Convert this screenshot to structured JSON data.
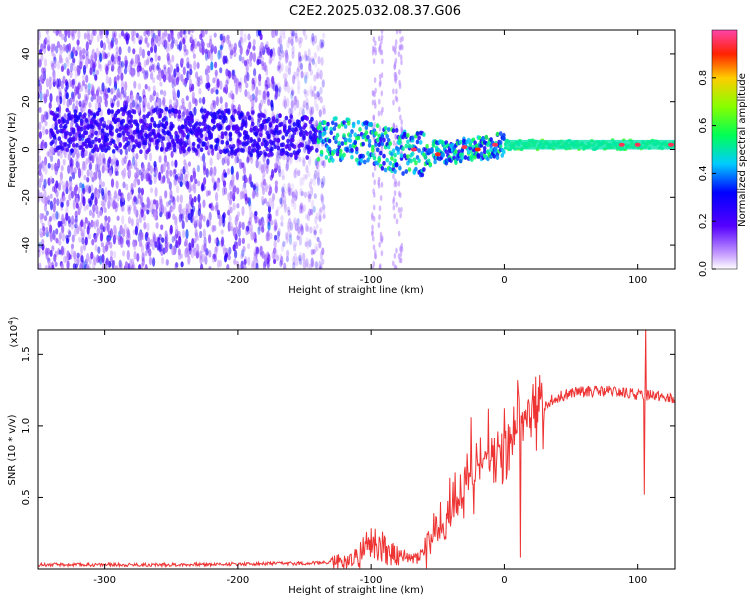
{
  "title": "C2E2.2025.032.08.37.G06",
  "colors": {
    "signal": "#ee3333",
    "scatter": "#7722ee",
    "axis": "#000000"
  },
  "chart_data": [
    {
      "type": "heatmap",
      "name": "spectrogram",
      "xlabel": "Height of straight line (km)",
      "ylabel": "Frequency (Hz)",
      "xlim": [
        -350,
        128
      ],
      "ylim": [
        -50,
        50
      ],
      "xticks": [
        -300,
        -200,
        -100,
        0,
        100
      ],
      "yticks": [
        -40,
        -20,
        0,
        20,
        40
      ],
      "colorbar": {
        "label": "Normalized spectral amplitude",
        "range": [
          0,
          1
        ],
        "ticks": [
          "0.0",
          "0.2",
          "0.4",
          "0.6",
          "0.8"
        ],
        "tick_values": [
          0,
          0.2,
          0.4,
          0.6,
          0.8
        ]
      },
      "ridge": [
        {
          "x": -220,
          "y": 8
        },
        {
          "x": -180,
          "y": 6
        },
        {
          "x": -150,
          "y": 5
        },
        {
          "x": -120,
          "y": 4
        },
        {
          "x": -100,
          "y": 2
        },
        {
          "x": -80,
          "y": -1
        },
        {
          "x": -60,
          "y": -2
        },
        {
          "x": -40,
          "y": -1
        },
        {
          "x": -20,
          "y": 0
        },
        {
          "x": 0,
          "y": 2
        },
        {
          "x": 50,
          "y": 2
        },
        {
          "x": 128,
          "y": 2
        }
      ],
      "hotspots": [
        {
          "x": -68,
          "y": 0,
          "v": 0.95
        },
        {
          "x": -50,
          "y": -2,
          "v": 0.92
        },
        {
          "x": -30,
          "y": 1,
          "v": 0.95
        },
        {
          "x": -20,
          "y": 0,
          "v": 0.9
        },
        {
          "x": -7,
          "y": 2,
          "v": 0.95
        },
        {
          "x": 88,
          "y": 2,
          "v": 0.95
        },
        {
          "x": 100,
          "y": 2,
          "v": 0.95
        },
        {
          "x": 125,
          "y": 2,
          "v": 0.95
        }
      ]
    },
    {
      "type": "line",
      "name": "snr",
      "xlabel": "Height of straight line (km)",
      "ylabel": "SNR (10 * v/v)",
      "multiplier_label": "(x10",
      "multiplier_exponent": "4",
      "xlim": [
        -350,
        128
      ],
      "ylim": [
        0,
        1.67
      ],
      "xticks": [
        -300,
        -200,
        -100,
        0,
        100
      ],
      "yticks": [
        0.5,
        1.0,
        1.5
      ],
      "ytick_labels": [
        "0.5",
        "1.0",
        "1.5"
      ],
      "series": [
        {
          "name": "SNR",
          "x": [
            -350,
            -250,
            -150,
            -120,
            -110,
            -100,
            -90,
            -80,
            -70,
            -60,
            -50,
            -40,
            -35,
            -30,
            -25,
            -20,
            -15,
            -10,
            -5,
            0,
            5,
            10,
            15,
            20,
            30,
            40,
            50,
            60,
            70,
            80,
            90,
            100,
            105,
            110,
            120,
            128
          ],
          "y": [
            0.03,
            0.03,
            0.04,
            0.05,
            0.1,
            0.18,
            0.15,
            0.08,
            0.07,
            0.12,
            0.25,
            0.4,
            0.48,
            0.6,
            0.65,
            0.72,
            0.78,
            0.8,
            0.85,
            0.85,
            0.92,
            0.98,
            1.05,
            1.1,
            1.15,
            1.2,
            1.23,
            1.24,
            1.24,
            1.24,
            1.23,
            1.22,
            1.2,
            1.23,
            1.2,
            1.18
          ],
          "spikes": [
            {
              "x": -25,
              "y": 1.06
            },
            {
              "x": -12,
              "y": 1.12
            },
            {
              "x": 10,
              "y": 1.32
            },
            {
              "x": 12,
              "y": 0.08
            },
            {
              "x": 106,
              "y": 1.7
            },
            {
              "x": 105,
              "y": 0.52
            }
          ]
        }
      ]
    }
  ]
}
